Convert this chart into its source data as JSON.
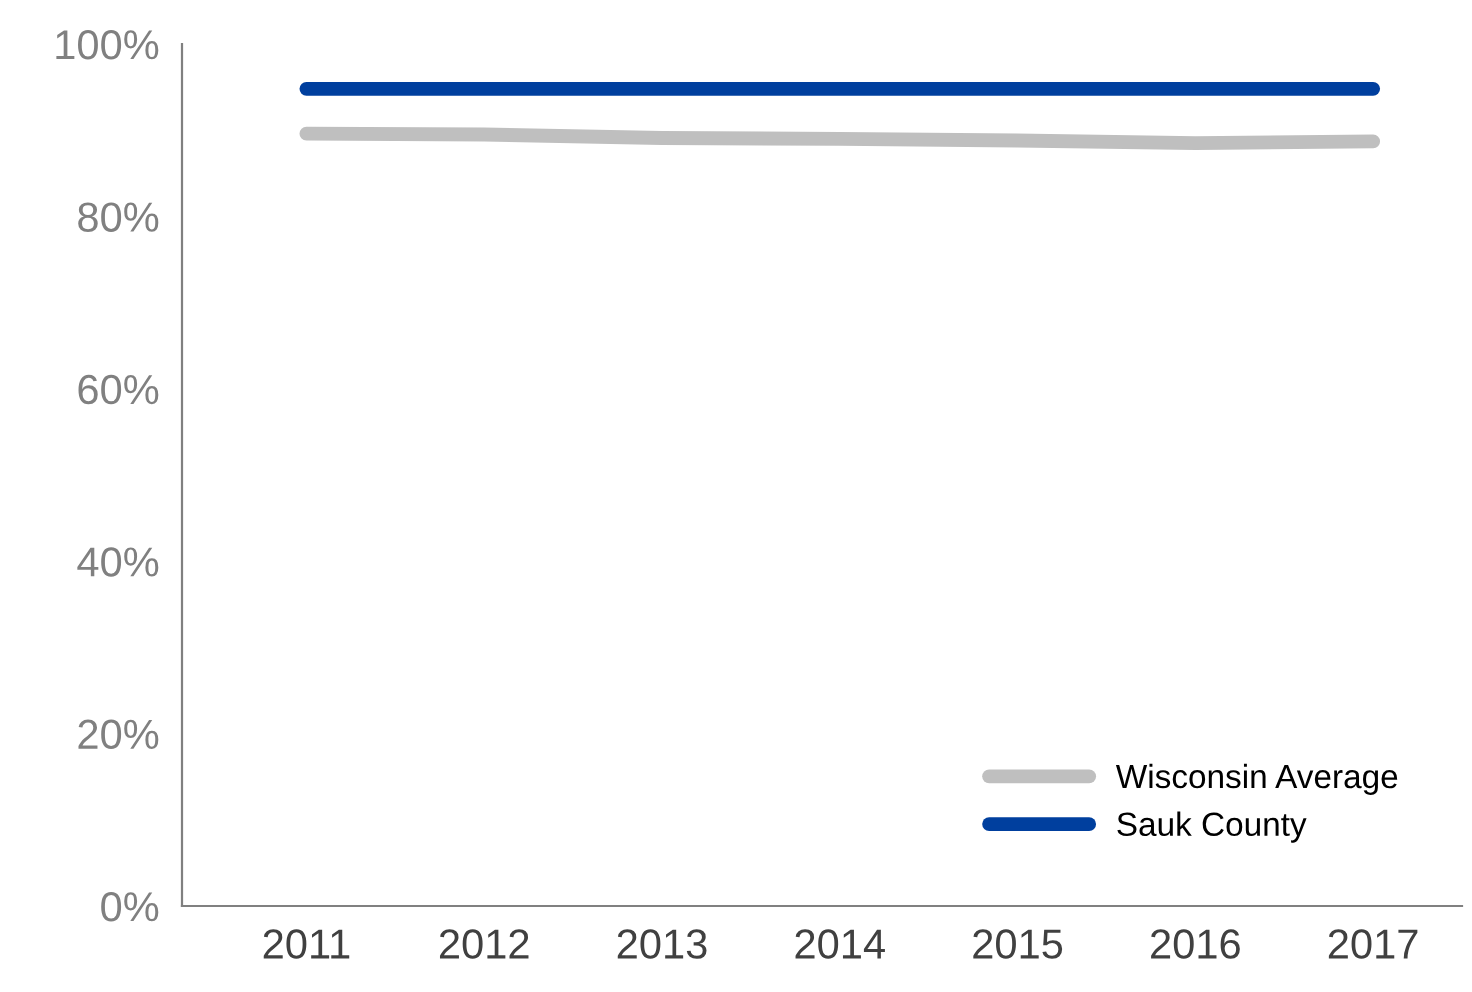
{
  "chart_data": {
    "type": "line",
    "categories": [
      "2011",
      "2012",
      "2013",
      "2014",
      "2015",
      "2016",
      "2017"
    ],
    "series": [
      {
        "name": "Wisconsin Average",
        "color": "#bfbfbf",
        "values": [
          89.6,
          89.5,
          89.1,
          89.0,
          88.8,
          88.5,
          88.7
        ]
      },
      {
        "name": "Sauk County",
        "color": "#003f9e",
        "values": [
          94.8,
          94.8,
          94.8,
          94.8,
          94.8,
          94.8,
          94.8
        ]
      }
    ],
    "ylim": [
      0,
      100
    ],
    "yticks": [
      {
        "value": 0,
        "label": "0%"
      },
      {
        "value": 20,
        "label": "20%"
      },
      {
        "value": 40,
        "label": "40%"
      },
      {
        "value": 60,
        "label": "60%"
      },
      {
        "value": 80,
        "label": "80%"
      },
      {
        "value": 100,
        "label": "100%"
      }
    ],
    "grid": false,
    "legend": "bottom right",
    "marker": "none",
    "line_style": "solid"
  }
}
